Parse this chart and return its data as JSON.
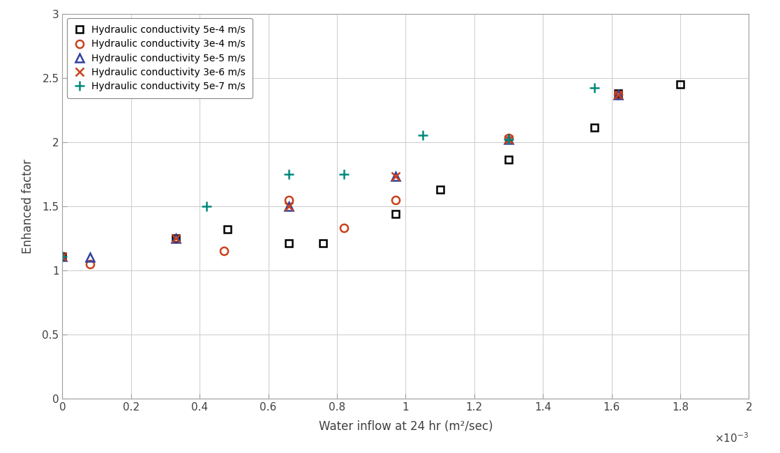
{
  "series": [
    {
      "label": "Hydraulic conductivity 5e-4 m/s",
      "color": "#000000",
      "marker": "s",
      "markersize": 7,
      "x": [
        0.0,
        0.33,
        0.48,
        0.66,
        0.76,
        0.97,
        1.1,
        1.3,
        1.55,
        1.62,
        1.8
      ],
      "y": [
        1.11,
        1.25,
        1.32,
        1.21,
        1.21,
        1.44,
        1.63,
        1.86,
        2.11,
        2.38,
        2.45
      ]
    },
    {
      "label": "Hydraulic conductivity 3e-4 m/s",
      "color": "#c8411b",
      "marker": "o",
      "markersize": 8,
      "x": [
        0.08,
        0.47,
        0.66,
        0.82,
        0.97,
        1.3,
        1.62
      ],
      "y": [
        1.05,
        1.15,
        1.55,
        1.33,
        1.55,
        2.03,
        2.37
      ]
    },
    {
      "label": "Hydraulic conductivity 5e-5 m/s",
      "color": "#3040a0",
      "marker": "^",
      "markersize": 8,
      "x": [
        0.0,
        0.08,
        0.33,
        0.66,
        0.97,
        1.3,
        1.62
      ],
      "y": [
        1.11,
        1.1,
        1.25,
        1.5,
        1.73,
        2.02,
        2.37
      ]
    },
    {
      "label": "Hydraulic conductivity 3e-6 m/s",
      "color": "#c8411b",
      "marker": "x",
      "markersize": 9,
      "x": [
        0.0,
        0.33,
        0.66,
        0.97,
        1.3,
        1.62
      ],
      "y": [
        1.11,
        1.25,
        1.5,
        1.73,
        2.02,
        2.37
      ]
    },
    {
      "label": "Hydraulic conductivity 5e-7 m/s",
      "color": "#00897b",
      "marker": "+",
      "markersize": 10,
      "x": [
        0.0,
        0.42,
        0.66,
        0.82,
        1.05,
        1.3,
        1.55
      ],
      "y": [
        1.11,
        1.5,
        1.75,
        1.75,
        2.05,
        2.02,
        2.42
      ]
    }
  ],
  "xlabel": "Water inflow at 24 hr (m²/sec)",
  "ylabel": "Enhanced factor",
  "xlim": [
    0,
    0.002
  ],
  "ylim": [
    0,
    3
  ],
  "xticks": [
    0,
    0.0002,
    0.0004,
    0.0006,
    0.0008,
    0.001,
    0.0012,
    0.0014,
    0.0016,
    0.0018,
    0.002
  ],
  "yticks": [
    0,
    0.5,
    1.0,
    1.5,
    2.0,
    2.5,
    3.0
  ],
  "xticklabels": [
    "0",
    "0.2",
    "0.4",
    "0.6",
    "0.8",
    "1",
    "1.2",
    "1.4",
    "1.6",
    "1.8",
    "2"
  ],
  "yticklabels": [
    "0",
    "0.5",
    "1",
    "1.5",
    "2",
    "2.5",
    "3"
  ],
  "background_color": "#ffffff",
  "grid_color": "#d0d0d0",
  "spine_color": "#a0a0a0",
  "legend_loc": "upper left",
  "fig_width": 11.18,
  "fig_height": 6.5,
  "dpi": 100
}
